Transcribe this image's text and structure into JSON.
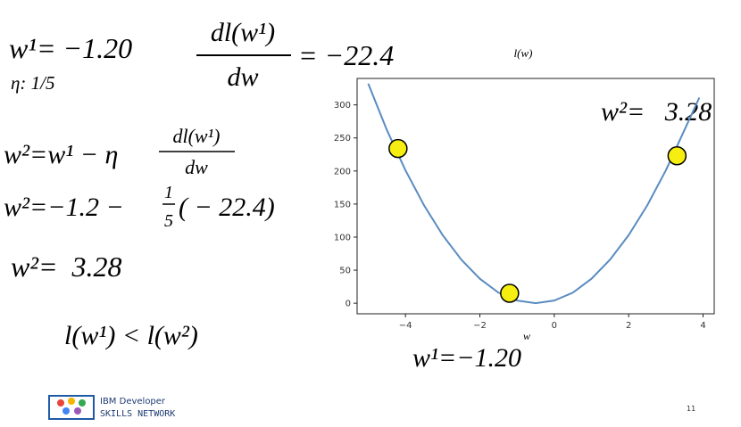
{
  "slide": {
    "w1": "w¹= −1.20",
    "eta": "η: 1/5",
    "grad": {
      "numerator": "dl(w¹)",
      "denominator": "dw",
      "rhs": "= −22.4"
    },
    "update": {
      "lhs": "w²=w¹ − η",
      "numerator": "dl(w¹)",
      "denominator": "dw"
    },
    "substitution": {
      "lhs": "w²=−1.2 −",
      "numerator": "1",
      "denominator": "5",
      "rhs": "( − 22.4)"
    },
    "result": "w²=  3.28",
    "compare": "l(w¹) < l(w²)",
    "logo": {
      "line1": "IBM Developer",
      "line2": "SKILLS NETWORK"
    },
    "page_number": "11"
  },
  "chart_data": {
    "type": "line",
    "title": "l(w)",
    "x_label": "w",
    "series": [
      {
        "type": "line",
        "color": "#5a8cc0",
        "x": [
          -5,
          -4.5,
          -4,
          -3.5,
          -3,
          -2.5,
          -2,
          -1.5,
          -1,
          -0.5,
          0,
          0.5,
          1,
          1.5,
          2,
          2.5,
          3,
          3.5,
          3.9
        ],
        "values": [
          332,
          262,
          201,
          148,
          103,
          66,
          37,
          16,
          4,
          0,
          4,
          16,
          37,
          66,
          103,
          148,
          201,
          262,
          311
        ]
      },
      {
        "type": "scatter",
        "color": "#f5ee10",
        "x": [
          -4.2,
          -1.2,
          3.3
        ],
        "values": [
          234,
          15,
          223
        ]
      }
    ],
    "xlim": [
      -5.3,
      4.3
    ],
    "ylim": [
      -16,
      340
    ],
    "xticks": [
      {
        "value": -4,
        "label": "−4"
      },
      {
        "value": -2,
        "label": "−2"
      },
      0,
      2,
      4
    ],
    "yticks": [
      0,
      50,
      100,
      150,
      200,
      250,
      300
    ],
    "annotations": [
      "w²=   3.28",
      "w¹=−1.20"
    ]
  }
}
